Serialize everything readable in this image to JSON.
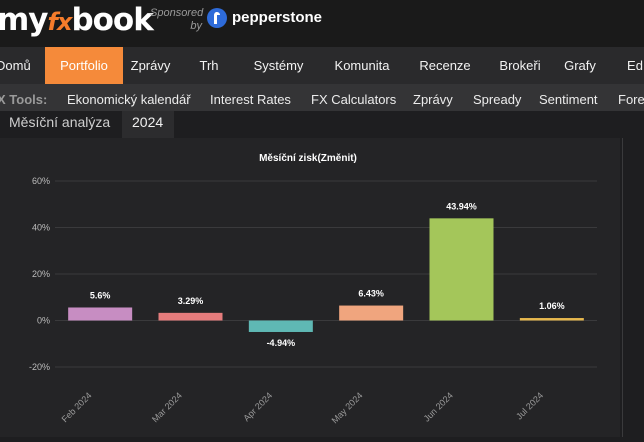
{
  "logo": {
    "part1": "my",
    "part2": "fx",
    "part3": "book"
  },
  "sponsor": {
    "line1": "Sponsored",
    "line2": "by",
    "name": "pepperstone"
  },
  "main_nav": [
    {
      "label": "Domů",
      "active": false
    },
    {
      "label": "Portfolio",
      "active": true
    },
    {
      "label": "Zprávy",
      "active": false
    },
    {
      "label": "Trh",
      "active": false
    },
    {
      "label": "Systémy",
      "active": false
    },
    {
      "label": "Komunita",
      "active": false
    },
    {
      "label": "Recenze",
      "active": false
    },
    {
      "label": "Brokeři",
      "active": false
    },
    {
      "label": "Grafy",
      "active": false
    },
    {
      "label": "Ed",
      "active": false
    }
  ],
  "tool_nav": {
    "label": "X Tools:",
    "items": [
      "Ekonomický kalendář",
      "Interest Rates",
      "FX Calculators",
      "Zprávy",
      "Spready",
      "Sentiment",
      "Fore"
    ]
  },
  "tabs": [
    {
      "label": "Měsíční analýza",
      "selected": false
    },
    {
      "label": "2024",
      "selected": true
    }
  ],
  "colors": {
    "accent": "#f58a3a",
    "header_bg": "#1a1a1a",
    "nav_bg": "#2a2a2c"
  },
  "chart_data": {
    "type": "bar",
    "title": "Měsíční zisk(Změnit)",
    "categories": [
      "Feb 2024",
      "Mar 2024",
      "Apr 2024",
      "May 2024",
      "Jun 2024",
      "Jul 2024"
    ],
    "values": [
      5.6,
      3.29,
      -4.94,
      6.43,
      43.94,
      1.06
    ],
    "value_labels": [
      "5.6%",
      "3.29%",
      "-4.94%",
      "6.43%",
      "43.94%",
      "1.06%"
    ],
    "bar_colors": [
      "#c78dc2",
      "#e57c7c",
      "#5fb8b4",
      "#f0a57e",
      "#a4c65a",
      "#e6b84e"
    ],
    "y_ticks": [
      60,
      40,
      20,
      0,
      -20
    ],
    "y_tick_labels": [
      "60%",
      "40%",
      "20%",
      "0%",
      "-20%"
    ],
    "ylim": [
      -20,
      60
    ],
    "grid": true,
    "legend": "none"
  }
}
